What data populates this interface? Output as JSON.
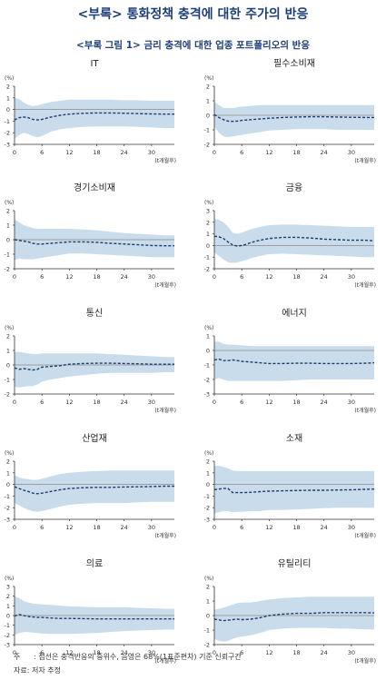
{
  "header": {
    "title": "<부록> 통화정책 충격에 대한 주가의 반응",
    "figure_title": "<부록 그림 1> 금리 충격에 대한 업종 포트폴리오의 반응"
  },
  "footer": {
    "note_label": "주",
    "note_text": ": 점선은 충격반응의 중위수, 음영은 68%(1표준편차) 기준 신뢰구간",
    "source": "자료: 저자 추정"
  },
  "colors": {
    "band": "#c9dceb",
    "median": "#1e3a6b",
    "zero_line": "#8a8a8a",
    "axis": "#333333",
    "title": "#1d3f7a"
  },
  "chart_data": [
    {
      "type": "area",
      "title": "IT",
      "ylabel": "(%)",
      "xlabel": "(t개월후)",
      "xlim": [
        0,
        35
      ],
      "ylim": [
        -3,
        2
      ],
      "xticks": [
        0,
        6,
        12,
        18,
        24,
        30
      ],
      "yticks": [
        2,
        1,
        0,
        -1,
        -2,
        -3
      ],
      "x": [
        0,
        1,
        2,
        3,
        4,
        5,
        6,
        7,
        8,
        10,
        12,
        15,
        18,
        21,
        24,
        27,
        30,
        33,
        35
      ],
      "median": [
        -0.9,
        -0.7,
        -0.65,
        -0.7,
        -0.85,
        -0.9,
        -0.85,
        -0.75,
        -0.65,
        -0.5,
        -0.4,
        -0.33,
        -0.3,
        -0.3,
        -0.32,
        -0.35,
        -0.38,
        -0.4,
        -0.4
      ],
      "upper": [
        1.0,
        0.9,
        0.6,
        0.4,
        0.3,
        0.35,
        0.45,
        0.55,
        0.65,
        0.75,
        0.85,
        0.85,
        0.85,
        0.85,
        0.8,
        0.8,
        0.75,
        0.75,
        0.75
      ],
      "lower": [
        -2.5,
        -2.2,
        -2.0,
        -2.1,
        -2.3,
        -2.4,
        -2.3,
        -2.1,
        -1.9,
        -1.7,
        -1.6,
        -1.5,
        -1.45,
        -1.45,
        -1.45,
        -1.5,
        -1.55,
        -1.6,
        -1.6
      ]
    },
    {
      "type": "area",
      "title": "필수소비재",
      "ylabel": "(%)",
      "xlabel": "(t개월후)",
      "xlim": [
        0,
        35
      ],
      "ylim": [
        -2,
        2
      ],
      "xticks": [
        0,
        6,
        12,
        18,
        24,
        30
      ],
      "yticks": [
        2,
        1,
        0,
        -1,
        -2
      ],
      "x": [
        0,
        1,
        2,
        3,
        4,
        5,
        6,
        8,
        10,
        12,
        15,
        18,
        21,
        24,
        27,
        30,
        33,
        35
      ],
      "median": [
        0.05,
        -0.15,
        -0.3,
        -0.4,
        -0.42,
        -0.4,
        -0.35,
        -0.3,
        -0.25,
        -0.2,
        -0.15,
        -0.12,
        -0.1,
        -0.1,
        -0.12,
        -0.14,
        -0.15,
        -0.15
      ],
      "upper": [
        0.95,
        0.7,
        0.5,
        0.5,
        0.5,
        0.55,
        0.6,
        0.65,
        0.7,
        0.7,
        0.7,
        0.7,
        0.7,
        0.7,
        0.7,
        0.7,
        0.7,
        0.7
      ],
      "lower": [
        -0.8,
        -1.2,
        -1.45,
        -1.5,
        -1.45,
        -1.4,
        -1.35,
        -1.25,
        -1.15,
        -1.05,
        -1.0,
        -0.95,
        -0.95,
        -0.95,
        -1.0,
        -1.0,
        -1.0,
        -1.0
      ]
    },
    {
      "type": "area",
      "title": "경기소비재",
      "ylabel": "(%)",
      "xlabel": "(t개월후)",
      "xlim": [
        0,
        35
      ],
      "ylim": [
        -2,
        2
      ],
      "xticks": [
        0,
        6,
        12,
        18,
        24,
        30
      ],
      "yticks": [
        2,
        1,
        0,
        -1,
        -2
      ],
      "x": [
        0,
        1,
        2,
        3,
        4,
        5,
        6,
        8,
        10,
        12,
        15,
        18,
        21,
        24,
        27,
        30,
        33,
        35
      ],
      "median": [
        0.0,
        -0.05,
        -0.1,
        -0.15,
        -0.25,
        -0.3,
        -0.3,
        -0.25,
        -0.2,
        -0.15,
        -0.15,
        -0.18,
        -0.25,
        -0.3,
        -0.35,
        -0.4,
        -0.42,
        -0.42
      ],
      "upper": [
        1.4,
        1.2,
        1.0,
        0.9,
        0.8,
        0.75,
        0.75,
        0.75,
        0.75,
        0.75,
        0.7,
        0.65,
        0.55,
        0.45,
        0.4,
        0.35,
        0.3,
        0.3
      ],
      "lower": [
        -1.4,
        -1.3,
        -1.35,
        -1.35,
        -1.35,
        -1.3,
        -1.25,
        -1.15,
        -1.05,
        -0.95,
        -0.95,
        -1.0,
        -1.05,
        -1.1,
        -1.15,
        -1.2,
        -1.2,
        -1.2
      ]
    },
    {
      "type": "area",
      "title": "금융",
      "ylabel": "(%)",
      "xlabel": "(t개월후)",
      "xlim": [
        0,
        35
      ],
      "ylim": [
        -2,
        3
      ],
      "xticks": [
        0,
        6,
        12,
        18,
        24,
        30
      ],
      "yticks": [
        3,
        2,
        1,
        0,
        -1,
        -2
      ],
      "x": [
        0,
        1,
        2,
        3,
        4,
        5,
        6,
        7,
        8,
        10,
        12,
        15,
        18,
        21,
        24,
        27,
        30,
        33,
        35
      ],
      "median": [
        0.8,
        0.75,
        0.6,
        0.3,
        0.05,
        -0.05,
        0.0,
        0.1,
        0.25,
        0.45,
        0.6,
        0.7,
        0.7,
        0.65,
        0.55,
        0.5,
        0.45,
        0.45,
        0.4
      ],
      "upper": [
        2.3,
        2.2,
        2.0,
        1.6,
        1.1,
        1.0,
        1.1,
        1.25,
        1.4,
        1.6,
        1.75,
        1.8,
        1.8,
        1.75,
        1.7,
        1.65,
        1.6,
        1.6,
        1.6
      ],
      "lower": [
        -0.6,
        -0.9,
        -1.2,
        -1.45,
        -1.5,
        -1.45,
        -1.35,
        -1.25,
        -1.1,
        -0.9,
        -0.75,
        -0.7,
        -0.75,
        -0.8,
        -0.85,
        -0.9,
        -0.95,
        -1.0,
        -1.0
      ]
    },
    {
      "type": "area",
      "title": "통신",
      "ylabel": "(%)",
      "xlabel": "(t개월후)",
      "xlim": [
        0,
        35
      ],
      "ylim": [
        -2,
        2
      ],
      "xticks": [
        0,
        6,
        12,
        18,
        24,
        30
      ],
      "yticks": [
        2,
        1,
        0,
        -1,
        -2
      ],
      "x": [
        0,
        1,
        2,
        3,
        4,
        5,
        6,
        8,
        10,
        12,
        15,
        18,
        21,
        24,
        27,
        30,
        33,
        35
      ],
      "median": [
        -0.2,
        -0.3,
        -0.25,
        -0.3,
        -0.35,
        -0.3,
        -0.15,
        -0.1,
        -0.05,
        0.05,
        0.1,
        0.12,
        0.12,
        0.1,
        0.08,
        0.05,
        0.05,
        0.05
      ],
      "upper": [
        0.9,
        0.9,
        0.85,
        0.8,
        0.75,
        0.75,
        0.8,
        0.8,
        0.8,
        0.8,
        0.8,
        0.8,
        0.75,
        0.7,
        0.65,
        0.6,
        0.55,
        0.55
      ],
      "lower": [
        -1.5,
        -1.55,
        -1.5,
        -1.45,
        -1.45,
        -1.35,
        -1.15,
        -1.0,
        -0.9,
        -0.8,
        -0.7,
        -0.6,
        -0.55,
        -0.55,
        -0.55,
        -0.55,
        -0.5,
        -0.5
      ]
    },
    {
      "type": "area",
      "title": "에너지",
      "ylabel": "(%)",
      "xlabel": "(t개월후)",
      "xlim": [
        0,
        35
      ],
      "ylim": [
        -3,
        1
      ],
      "xticks": [
        0,
        6,
        12,
        18,
        24,
        30
      ],
      "yticks": [
        1,
        0,
        -1,
        -2,
        -3
      ],
      "x": [
        0,
        1,
        2,
        3,
        4,
        5,
        6,
        8,
        10,
        12,
        15,
        18,
        21,
        24,
        27,
        30,
        33,
        35
      ],
      "median": [
        -0.65,
        -0.6,
        -0.7,
        -0.7,
        -0.65,
        -0.7,
        -0.75,
        -0.8,
        -0.85,
        -0.9,
        -0.9,
        -0.88,
        -0.88,
        -0.9,
        -0.9,
        -0.9,
        -0.88,
        -0.85
      ],
      "upper": [
        0.6,
        0.6,
        0.45,
        0.4,
        0.4,
        0.38,
        0.35,
        0.3,
        0.3,
        0.3,
        0.3,
        0.3,
        0.3,
        0.3,
        0.3,
        0.3,
        0.3,
        0.3
      ],
      "lower": [
        -2.0,
        -1.9,
        -2.0,
        -2.1,
        -2.1,
        -2.1,
        -2.1,
        -2.1,
        -2.1,
        -2.1,
        -2.1,
        -2.05,
        -2.0,
        -2.0,
        -2.0,
        -2.0,
        -2.0,
        -2.0
      ]
    },
    {
      "type": "area",
      "title": "산업재",
      "ylabel": "(%)",
      "xlabel": "(t개월후)",
      "xlim": [
        0,
        35
      ],
      "ylim": [
        -3,
        2
      ],
      "xticks": [
        0,
        6,
        12,
        18,
        24,
        30
      ],
      "yticks": [
        2,
        1,
        0,
        -1,
        -2,
        -3
      ],
      "x": [
        0,
        1,
        2,
        3,
        4,
        5,
        6,
        8,
        10,
        12,
        15,
        18,
        21,
        24,
        27,
        30,
        33,
        35
      ],
      "median": [
        -0.2,
        -0.35,
        -0.5,
        -0.6,
        -0.75,
        -0.8,
        -0.75,
        -0.6,
        -0.45,
        -0.35,
        -0.28,
        -0.25,
        -0.25,
        -0.22,
        -0.2,
        -0.18,
        -0.15,
        -0.15
      ],
      "upper": [
        0.8,
        0.6,
        0.5,
        0.45,
        0.4,
        0.4,
        0.5,
        0.7,
        0.9,
        1.0,
        1.1,
        1.15,
        1.2,
        1.2,
        1.2,
        1.2,
        1.2,
        1.2
      ],
      "lower": [
        -1.6,
        -1.8,
        -2.0,
        -2.2,
        -2.3,
        -2.35,
        -2.3,
        -2.1,
        -1.9,
        -1.75,
        -1.65,
        -1.6,
        -1.6,
        -1.6,
        -1.55,
        -1.5,
        -1.5,
        -1.5
      ]
    },
    {
      "type": "area",
      "title": "소재",
      "ylabel": "(%)",
      "xlabel": "(t개월후)",
      "xlim": [
        0,
        35
      ],
      "ylim": [
        -3,
        2
      ],
      "xticks": [
        0,
        6,
        12,
        18,
        24,
        30
      ],
      "yticks": [
        2,
        1,
        0,
        -1,
        -2,
        -3
      ],
      "x": [
        0,
        1,
        2,
        3,
        4,
        5,
        6,
        8,
        10,
        12,
        15,
        18,
        21,
        24,
        27,
        30,
        33,
        35
      ],
      "median": [
        -0.45,
        -0.4,
        -0.35,
        -0.35,
        -0.7,
        -0.7,
        -0.7,
        -0.68,
        -0.62,
        -0.58,
        -0.55,
        -0.52,
        -0.5,
        -0.5,
        -0.48,
        -0.46,
        -0.42,
        -0.4
      ],
      "upper": [
        1.6,
        1.6,
        1.5,
        1.4,
        1.2,
        1.15,
        1.15,
        1.15,
        1.15,
        1.15,
        1.15,
        1.15,
        1.15,
        1.15,
        1.15,
        1.15,
        1.15,
        1.15
      ],
      "lower": [
        -2.5,
        -2.4,
        -2.3,
        -2.3,
        -2.4,
        -2.35,
        -2.35,
        -2.3,
        -2.3,
        -2.2,
        -2.2,
        -2.15,
        -2.1,
        -2.05,
        -2.0,
        -2.0,
        -2.0,
        -2.0
      ]
    },
    {
      "type": "area",
      "title": "의료",
      "ylabel": "(%)",
      "xlabel": "(t개월후)",
      "xlim": [
        0,
        35
      ],
      "ylim": [
        -3,
        3
      ],
      "xticks": [
        0,
        6,
        12,
        18,
        24,
        30
      ],
      "yticks": [
        3,
        2,
        1,
        0,
        -1,
        -2,
        -3
      ],
      "x": [
        0,
        1,
        2,
        3,
        4,
        5,
        6,
        8,
        10,
        12,
        15,
        18,
        21,
        24,
        27,
        30,
        33,
        35
      ],
      "median": [
        -0.05,
        0.1,
        0.0,
        -0.1,
        -0.15,
        -0.2,
        -0.2,
        -0.25,
        -0.3,
        -0.3,
        -0.32,
        -0.35,
        -0.35,
        -0.35,
        -0.35,
        -0.35,
        -0.35,
        -0.35
      ],
      "upper": [
        2.0,
        1.8,
        1.5,
        1.35,
        1.25,
        1.2,
        1.15,
        1.1,
        1.0,
        0.95,
        0.9,
        0.85,
        0.85,
        0.85,
        0.8,
        0.75,
        0.7,
        0.7
      ],
      "lower": [
        -2.0,
        -1.8,
        -1.7,
        -1.7,
        -1.75,
        -1.8,
        -1.85,
        -1.9,
        -1.9,
        -1.9,
        -1.85,
        -1.8,
        -1.7,
        -1.6,
        -1.55,
        -1.5,
        -1.45,
        -1.45
      ]
    },
    {
      "type": "area",
      "title": "유틸리티",
      "ylabel": "(%)",
      "xlabel": "(t개월후)",
      "xlim": [
        0,
        35
      ],
      "ylim": [
        -2,
        2
      ],
      "xticks": [
        0,
        6,
        12,
        18,
        24,
        30
      ],
      "yticks": [
        2,
        1,
        0,
        -1,
        -2
      ],
      "x": [
        0,
        1,
        2,
        3,
        4,
        5,
        6,
        8,
        10,
        12,
        15,
        18,
        21,
        24,
        27,
        30,
        33,
        35
      ],
      "median": [
        -0.25,
        -0.3,
        -0.35,
        -0.32,
        -0.28,
        -0.25,
        -0.28,
        -0.25,
        -0.15,
        0.0,
        0.1,
        0.15,
        0.15,
        0.2,
        0.2,
        0.2,
        0.2,
        0.18
      ],
      "upper": [
        0.4,
        0.45,
        0.55,
        0.65,
        0.75,
        0.85,
        0.9,
        0.9,
        1.0,
        1.1,
        1.2,
        1.25,
        1.3,
        1.3,
        1.3,
        1.3,
        1.3,
        1.3
      ],
      "lower": [
        -1.6,
        -1.75,
        -1.8,
        -1.75,
        -1.6,
        -1.5,
        -1.45,
        -1.35,
        -1.2,
        -1.0,
        -0.9,
        -0.85,
        -0.85,
        -0.85,
        -0.9,
        -0.9,
        -0.95,
        -0.95
      ]
    }
  ]
}
